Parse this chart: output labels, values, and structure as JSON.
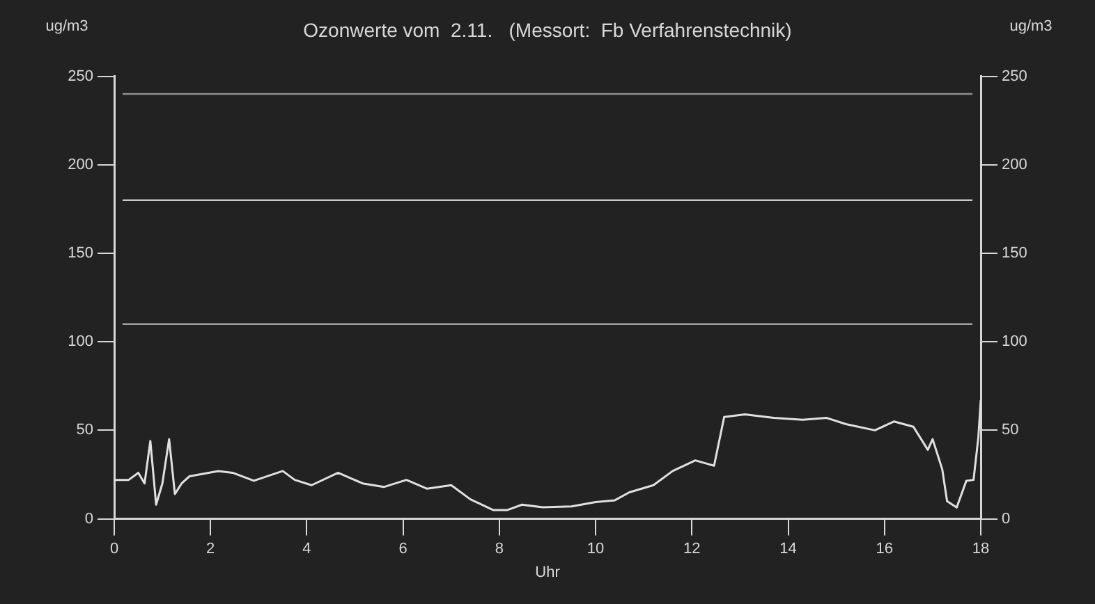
{
  "chart_data": {
    "type": "line",
    "title": "Ozonwerte vom  2.11.   (Messort:  Fb Verfahrenstechnik)",
    "xlabel": "Uhr",
    "ylabel": "ug/m3",
    "y2label": "ug/m3",
    "x": [
      0,
      0.3,
      0.5,
      0.63,
      0.75,
      0.87,
      1.0,
      1.14,
      1.26,
      1.4,
      1.56,
      2.16,
      2.46,
      2.9,
      3.5,
      3.75,
      4.1,
      4.65,
      5.16,
      5.6,
      6.07,
      6.5,
      7.0,
      7.4,
      7.87,
      8.17,
      8.47,
      8.9,
      9.5,
      10.0,
      10.4,
      10.7,
      11.2,
      11.6,
      12.07,
      12.46,
      12.67,
      13.1,
      13.7,
      14.3,
      14.8,
      15.2,
      15.8,
      16.2,
      16.6,
      16.9,
      17.0,
      17.2,
      17.3,
      17.5,
      17.7,
      17.85,
      17.95,
      18
    ],
    "series": [
      {
        "color": "#e0e0e0",
        "values": [
          22,
          22,
          26,
          20,
          44,
          8,
          20,
          45,
          14,
          20,
          24,
          27,
          26,
          21.5,
          27,
          22,
          19,
          26,
          20,
          18,
          22,
          17,
          19,
          11,
          5,
          5,
          8,
          6.5,
          7,
          9.5,
          10.5,
          15,
          19,
          27,
          33,
          30,
          57.5,
          59,
          57,
          56,
          57,
          53.5,
          50,
          55,
          52,
          39,
          45,
          28,
          10,
          6.4,
          21.5,
          22,
          46,
          67
        ]
      }
    ],
    "xlim": [
      0,
      18
    ],
    "xticks": [
      0,
      2,
      4,
      6,
      8,
      10,
      12,
      14,
      16,
      18
    ],
    "ylim": [
      0,
      250
    ],
    "yticks": [
      0,
      50,
      100,
      150,
      200,
      250
    ],
    "y2lim": [
      0,
      250
    ],
    "y2ticks": [
      0,
      50,
      100,
      150,
      200,
      250
    ],
    "ref_lines": [
      {
        "axis": "y",
        "value": 240,
        "color": "#909090"
      },
      {
        "axis": "y",
        "value": 180,
        "color": "#c8c8c8"
      },
      {
        "axis": "y",
        "value": 110,
        "color": "#a0a0a0"
      }
    ],
    "grid": false,
    "legend": false,
    "marker": "none",
    "line_style": "solid"
  }
}
